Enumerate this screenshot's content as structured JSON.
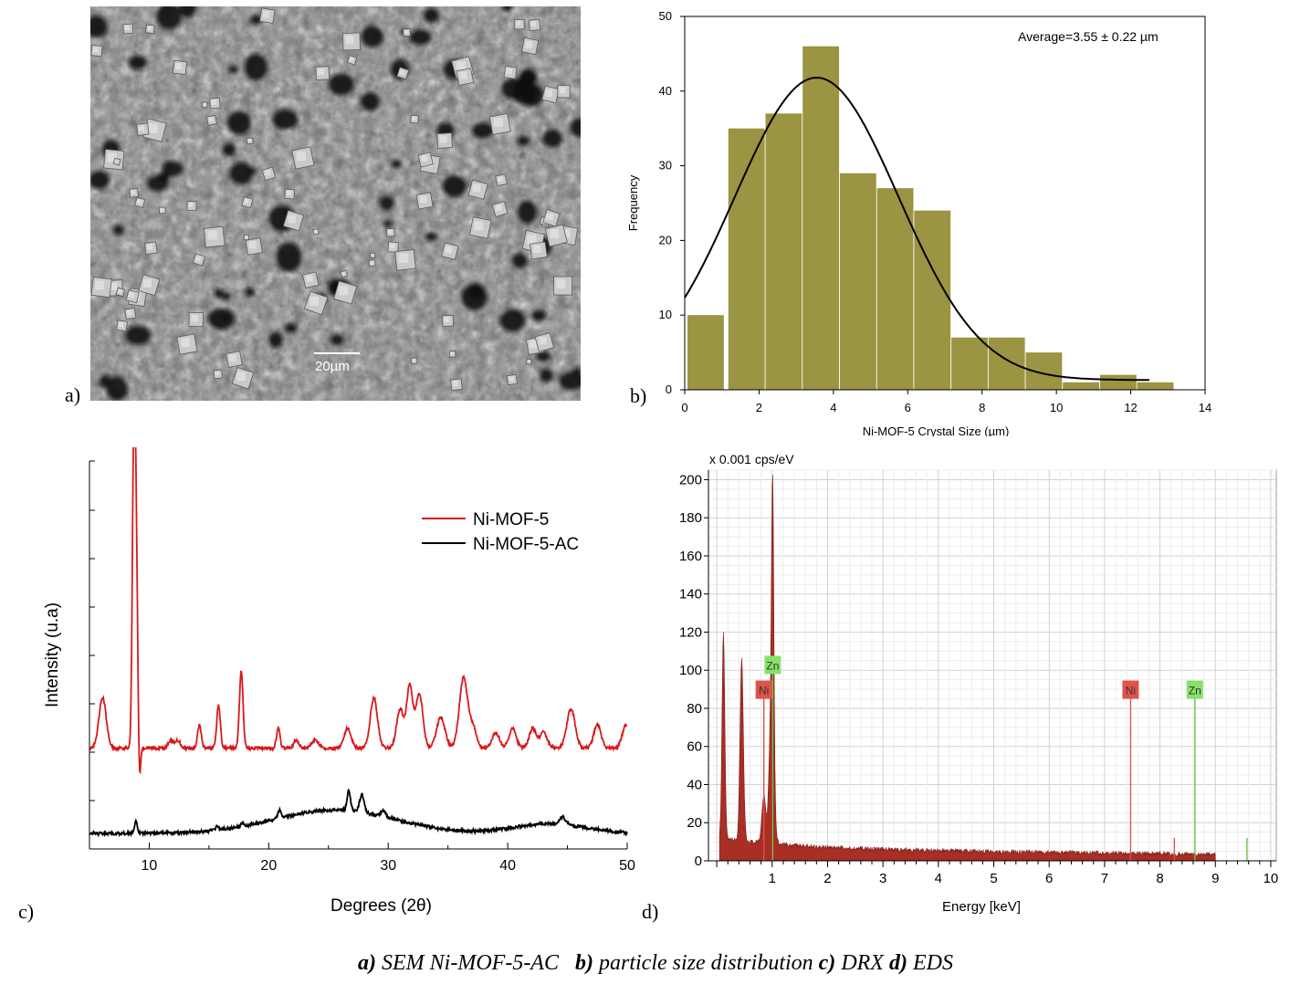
{
  "panels": {
    "a": {
      "label": "a)",
      "scale_bar_label": "20µm"
    },
    "b": {
      "label": "b)"
    },
    "c": {
      "label": "c)"
    },
    "d": {
      "label": "d)"
    }
  },
  "caption": {
    "a_key": "a)",
    "a_text": " SEM Ni-MOF-5-AC",
    "b_key": "b)",
    "b_text": " particle size distribution",
    "c_key": "c)",
    "c_text": " DRX",
    "d_key": "d)",
    "d_text": " EDS"
  },
  "chart_data": [
    {
      "id": "histogram",
      "type": "bar",
      "title": "",
      "xlabel": "Ni-MOF-5 Crystal Size (µm)",
      "ylabel": "Frequency",
      "annotation": "Average=3.55 ± 0.22 µm",
      "xlim": [
        0,
        14
      ],
      "ylim": [
        0,
        50
      ],
      "xticks": [
        0,
        2,
        4,
        6,
        8,
        10,
        12,
        14
      ],
      "yticks": [
        0,
        10,
        20,
        30,
        40,
        50
      ],
      "bin_width": 1.1,
      "bin_gap": 0.8,
      "bins": [
        {
          "x0": 0.0,
          "value": 10
        },
        {
          "x0": 1.1,
          "value": 35
        },
        {
          "x0": 2.1,
          "value": 37
        },
        {
          "x0": 3.1,
          "value": 46
        },
        {
          "x0": 4.1,
          "value": 29
        },
        {
          "x0": 5.1,
          "value": 27
        },
        {
          "x0": 6.1,
          "value": 24
        },
        {
          "x0": 7.1,
          "value": 7
        },
        {
          "x0": 8.1,
          "value": 7
        },
        {
          "x0": 9.1,
          "value": 5
        },
        {
          "x0": 10.1,
          "value": 1
        },
        {
          "x0": 11.1,
          "value": 2
        },
        {
          "x0": 12.1,
          "value": 1
        }
      ],
      "fit_curve": {
        "mean": 3.55,
        "sd": 2.2,
        "peak": 41.8,
        "offset": 1.3,
        "x_range": [
          0,
          12.5
        ]
      },
      "bar_color": "#9b9443",
      "curve_color": "#000000"
    },
    {
      "id": "xrd",
      "type": "line",
      "title": "",
      "xlabel": "Degrees (2θ)",
      "ylabel": "Intensity (u.a)",
      "xlim": [
        5,
        50
      ],
      "ylim": [
        0,
        100
      ],
      "xticks": [
        10,
        20,
        30,
        40,
        50
      ],
      "legend_position": "top-right",
      "series": [
        {
          "name": "Ni-MOF-5",
          "color": "#d7191c",
          "baseline": 26,
          "peaks": [
            [
              6.1,
              13,
              0.3
            ],
            [
              8.7,
              72,
              0.12
            ],
            [
              8.9,
              52,
              0.12
            ],
            [
              9.2,
              -8,
              0.08
            ],
            [
              11.8,
              2,
              0.2
            ],
            [
              12.4,
              2,
              0.2
            ],
            [
              14.2,
              6,
              0.15
            ],
            [
              15.8,
              11,
              0.15
            ],
            [
              17.7,
              20,
              0.15
            ],
            [
              20.8,
              5,
              0.15
            ],
            [
              22.3,
              2,
              0.2
            ],
            [
              23.9,
              2,
              0.3
            ],
            [
              26.6,
              5,
              0.3
            ],
            [
              28.8,
              13,
              0.3
            ],
            [
              31.0,
              10,
              0.3
            ],
            [
              31.8,
              16,
              0.25
            ],
            [
              32.6,
              14,
              0.3
            ],
            [
              34.4,
              8,
              0.35
            ],
            [
              36.3,
              18,
              0.35
            ],
            [
              37.1,
              5,
              0.3
            ],
            [
              39.0,
              4,
              0.3
            ],
            [
              40.4,
              5,
              0.3
            ],
            [
              42.1,
              5,
              0.3
            ],
            [
              43.0,
              4,
              0.3
            ],
            [
              45.3,
              10,
              0.35
            ],
            [
              47.5,
              6,
              0.3
            ],
            [
              49.9,
              6,
              0.3
            ]
          ]
        },
        {
          "name": "Ni-MOF-5-AC",
          "color": "#000000",
          "baseline": 4,
          "hump": {
            "center": 25.5,
            "height": 6,
            "sd": 5.0
          },
          "hump2": {
            "center": 43.5,
            "height": 2.5,
            "sd": 3.0
          },
          "peaks": [
            [
              8.9,
              3,
              0.12
            ],
            [
              15.7,
              1,
              0.15
            ],
            [
              17.8,
              1,
              0.15
            ],
            [
              20.9,
              2,
              0.15
            ],
            [
              26.7,
              5,
              0.15
            ],
            [
              27.8,
              4.5,
              0.2
            ],
            [
              29.6,
              1.5,
              0.2
            ],
            [
              44.6,
              2,
              0.25
            ]
          ]
        }
      ]
    },
    {
      "id": "eds",
      "type": "area",
      "title": "",
      "unit_label": "x 0.001 cps/eV",
      "xlabel": "Energy [keV]",
      "ylabel": "",
      "xlim": [
        -0.15,
        10.1
      ],
      "ylim": [
        0,
        205
      ],
      "xticks": [
        1,
        2,
        3,
        4,
        5,
        6,
        7,
        8,
        9,
        10
      ],
      "yticks": [
        0,
        20,
        40,
        60,
        80,
        100,
        120,
        140,
        160,
        180,
        200
      ],
      "grid": true,
      "spectrum_color": "#a82e26",
      "spectrum_peaks": [
        [
          0.12,
          108,
          0.025
        ],
        [
          0.45,
          95,
          0.03
        ],
        [
          0.85,
          25,
          0.035
        ],
        [
          1.01,
          124,
          0.02
        ],
        [
          0.99,
          80,
          0.04
        ]
      ],
      "element_markers": [
        {
          "label": "Ni",
          "energy": 0.85,
          "height": 85,
          "color": "#d9534f",
          "label_bg": "#e0524a"
        },
        {
          "label": "Zn",
          "energy": 1.01,
          "height": 98,
          "color": "#6ec24a",
          "label_bg": "#88e06a"
        },
        {
          "label": "Ni",
          "energy": 7.47,
          "height": 85,
          "color": "#d9534f",
          "label_bg": "#e0524a"
        },
        {
          "label": "Zn",
          "energy": 8.63,
          "height": 85,
          "color": "#6ec24a",
          "label_bg": "#88e06a"
        }
      ],
      "minor_lines": [
        {
          "energy": 8.26,
          "height": 12,
          "color": "#d9534f"
        },
        {
          "energy": 9.57,
          "height": 12,
          "color": "#6ec24a"
        }
      ]
    }
  ]
}
